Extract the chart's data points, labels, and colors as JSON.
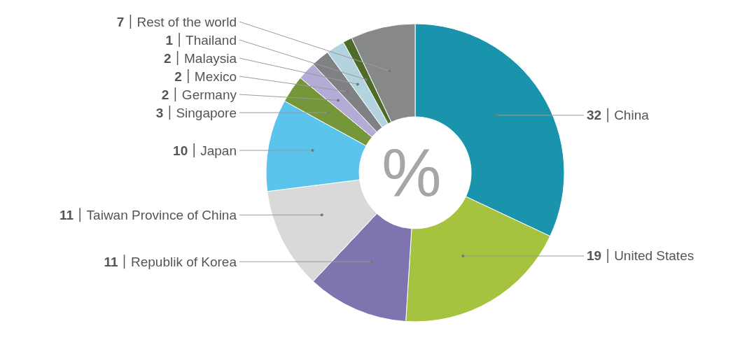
{
  "chart_data": {
    "type": "donut",
    "categories": [
      "China",
      "United States",
      "Republik of Korea",
      "Taiwan Province of China",
      "Japan",
      "Singapore",
      "Germany",
      "Mexico",
      "Malaysia",
      "Thailand",
      "Rest of the world"
    ],
    "values": [
      32,
      19,
      11,
      11,
      10,
      3,
      2,
      2,
      2,
      1,
      7
    ],
    "colors": [
      "#1a93ad",
      "#a5c33f",
      "#7d74b0",
      "#d9d9da",
      "#5bc4ec",
      "#76963a",
      "#b3acd6",
      "#808184",
      "#b3d4df",
      "#4f6b2a",
      "#87888a"
    ],
    "data_labels": true,
    "annotations": [
      "%"
    ]
  }
}
